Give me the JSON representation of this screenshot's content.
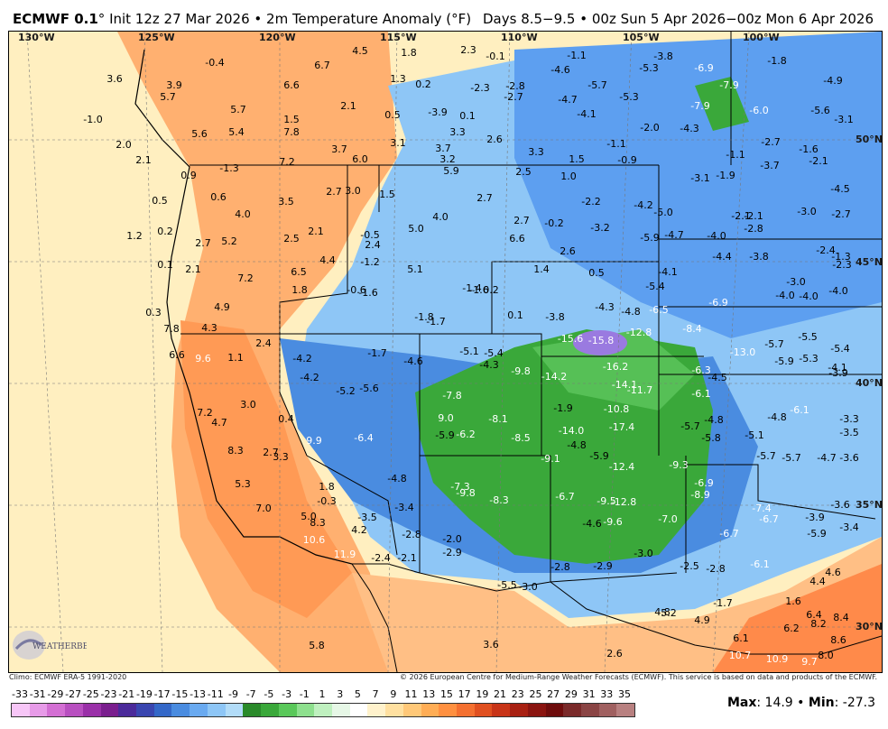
{
  "header": {
    "model": "ECMWF 0.1",
    "degree": "°",
    "init_text": "Init 12z 27 Mar 2026 • 2m Temperature Anomaly (°F)",
    "valid_text": "Days 8.5−9.5 • 00z Sun 5 Apr 2026−00z Mon 6 Apr 2026"
  },
  "footer": {
    "climo": "Climo: ECMWF ERA-5 1991-2020",
    "copyright": "© 2026 European Centre for Medium-Range Weather Forecasts (ECMWF). This service is based on data and products of the ECMWF."
  },
  "stats": {
    "max_label": "Max",
    "max_value": "14.9",
    "sep": " • ",
    "min_label": "Min",
    "min_value": "-27.3"
  },
  "logo_text": "WEATHERBELL",
  "longitude_labels": [
    "130°W",
    "125°W",
    "120°W",
    "115°W",
    "110°W",
    "105°W",
    "100°W"
  ],
  "latitude_labels": [
    "50°N",
    "45°N",
    "40°N",
    "35°N",
    "30°N"
  ],
  "colorbar": {
    "ticks": [
      "-33",
      "-31",
      "-29",
      "-27",
      "-25",
      "-23",
      "-21",
      "-19",
      "-17",
      "-15",
      "-13",
      "-11",
      "-9",
      "-7",
      "-5",
      "-3",
      "-1",
      "1",
      "3",
      "5",
      "7",
      "9",
      "11",
      "13",
      "15",
      "17",
      "19",
      "21",
      "23",
      "25",
      "27",
      "29",
      "31",
      "33",
      "35"
    ],
    "colors": [
      "#f7c6f7",
      "#e79be8",
      "#d36fd3",
      "#b84fc0",
      "#9a30a8",
      "#7a1e8e",
      "#4b2a9a",
      "#3a46b0",
      "#3468c8",
      "#4a8ce0",
      "#6aaaf0",
      "#8ec6f6",
      "#b2dcf8",
      "#2a8a2a",
      "#3aa83a",
      "#5ac85a",
      "#8ee08e",
      "#bff0bf",
      "#e6f7e6",
      "#ffffff",
      "#fff2cc",
      "#ffe0a0",
      "#ffc878",
      "#ffad55",
      "#ff9040",
      "#f47030",
      "#e05020",
      "#c83418",
      "#a82012",
      "#8a1410",
      "#6e0c0c",
      "#7a2a2a",
      "#8a4444",
      "#a06060",
      "#b88080"
    ]
  },
  "anomalies": [
    {
      "v": "-0.4"
    },
    {
      "v": "3.6"
    },
    {
      "v": "3.9"
    },
    {
      "v": "5.7"
    },
    {
      "v": "6.7"
    },
    {
      "v": "4.5"
    },
    {
      "v": "1.8"
    },
    {
      "v": "2.3"
    },
    {
      "v": "-0.1"
    },
    {
      "v": "-1.1"
    },
    {
      "v": "-3.8"
    },
    {
      "v": "-1.8"
    },
    {
      "v": "-4.6"
    },
    {
      "v": "-5.3"
    },
    {
      "v": "-6.9"
    },
    {
      "v": "-4.9"
    },
    {
      "v": "6.6"
    },
    {
      "v": "1.3"
    },
    {
      "v": "0.2"
    },
    {
      "v": "-2.3"
    },
    {
      "v": "-2.8"
    },
    {
      "v": "-2.7"
    },
    {
      "v": "-5.7"
    },
    {
      "v": "-4.7"
    },
    {
      "v": "-5.3"
    },
    {
      "v": "-7.9"
    },
    {
      "v": "-7.9"
    },
    {
      "v": "-6.0"
    },
    {
      "v": "-5.6"
    },
    {
      "v": "-3.1"
    },
    {
      "v": "5.7"
    },
    {
      "v": "2.1"
    },
    {
      "v": "0.5"
    },
    {
      "v": "-3.9"
    },
    {
      "v": "0.1"
    },
    {
      "v": "-4.1"
    },
    {
      "v": "1.5"
    },
    {
      "v": "5.6"
    },
    {
      "v": "5.4"
    },
    {
      "v": "7.8"
    },
    {
      "v": "3.3"
    },
    {
      "v": "2.6"
    },
    {
      "v": "-2.0"
    },
    {
      "v": "-4.3"
    },
    {
      "v": "3.7"
    },
    {
      "v": "3.1"
    },
    {
      "v": "3.7"
    },
    {
      "v": "3.3"
    },
    {
      "v": "-1.1"
    },
    {
      "v": "-2.7"
    },
    {
      "v": "-1.6"
    },
    {
      "v": "-1.0"
    },
    {
      "v": "2.0"
    },
    {
      "v": "2.1"
    },
    {
      "v": "7.2"
    },
    {
      "v": "6.0"
    },
    {
      "v": "3.2"
    },
    {
      "v": "1.5"
    },
    {
      "v": "-0.9"
    },
    {
      "v": "-1.1"
    },
    {
      "v": "-3.7"
    },
    {
      "v": "-2.1"
    },
    {
      "v": "-1.3"
    },
    {
      "v": "0.9"
    },
    {
      "v": "5.9"
    },
    {
      "v": "2.5"
    },
    {
      "v": "1.0"
    },
    {
      "v": "-3.1"
    },
    {
      "v": "-1.9"
    },
    {
      "v": "0.5"
    },
    {
      "v": "0.6"
    },
    {
      "v": "3.5"
    },
    {
      "v": "2.7"
    },
    {
      "v": "3.0"
    },
    {
      "v": "1.5"
    },
    {
      "v": "2.7"
    },
    {
      "v": "-2.2"
    },
    {
      "v": "-4.2"
    },
    {
      "v": "-5.0"
    },
    {
      "v": "-2.1"
    },
    {
      "v": "-3.0"
    },
    {
      "v": "-4.5"
    },
    {
      "v": "-2.7"
    },
    {
      "v": "4.0"
    },
    {
      "v": "0.2"
    },
    {
      "v": "1.2"
    },
    {
      "v": "5.2"
    },
    {
      "v": "2.7"
    },
    {
      "v": "2.5"
    },
    {
      "v": "2.1"
    },
    {
      "v": "-0.5"
    },
    {
      "v": "5.0"
    },
    {
      "v": "4.0"
    },
    {
      "v": "2.7"
    },
    {
      "v": "-0.2"
    },
    {
      "v": "-3.2"
    },
    {
      "v": "-2.1"
    },
    {
      "v": "-2.8"
    },
    {
      "v": "-5.9"
    },
    {
      "v": "-4.7"
    },
    {
      "v": "-4.0"
    },
    {
      "v": "2.4"
    },
    {
      "v": "6.6"
    },
    {
      "v": "2.6"
    },
    {
      "v": "-2.4"
    },
    {
      "v": "-1.3"
    },
    {
      "v": "0.1"
    },
    {
      "v": "2.1"
    },
    {
      "v": "6.5"
    },
    {
      "v": "4.4"
    },
    {
      "v": "-1.2"
    },
    {
      "v": "5.1"
    },
    {
      "v": "1.4"
    },
    {
      "v": "0.5"
    },
    {
      "v": "-4.4"
    },
    {
      "v": "-3.8"
    },
    {
      "v": "-2.3"
    },
    {
      "v": "-4.1"
    },
    {
      "v": "7.2"
    },
    {
      "v": "1.8"
    },
    {
      "v": "-0.6"
    },
    {
      "v": "-1.6"
    },
    {
      "v": "-1.4"
    },
    {
      "v": "-1.6"
    },
    {
      "v": "0.2"
    },
    {
      "v": "-5.4"
    },
    {
      "v": "-3.0"
    },
    {
      "v": "-4.0"
    },
    {
      "v": "-4.0"
    },
    {
      "v": "-4.0"
    },
    {
      "v": "0.3"
    },
    {
      "v": "4.9"
    },
    {
      "v": "-1.8"
    },
    {
      "v": "-1.7"
    },
    {
      "v": "0.1"
    },
    {
      "v": "-3.8"
    },
    {
      "v": "-4.3"
    },
    {
      "v": "-4.8"
    },
    {
      "v": "-6.5"
    },
    {
      "v": "-6.9"
    },
    {
      "v": "7.8"
    },
    {
      "v": "4.3"
    },
    {
      "v": "2.4"
    },
    {
      "v": "-15.6"
    },
    {
      "v": "-15.8"
    },
    {
      "v": "-12.8"
    },
    {
      "v": "-8.4"
    },
    {
      "v": "-5.5"
    },
    {
      "v": "6.6"
    },
    {
      "v": "9.6"
    },
    {
      "v": "1.1"
    },
    {
      "v": "-4.2"
    },
    {
      "v": "-1.7"
    },
    {
      "v": "-4.6"
    },
    {
      "v": "-5.1"
    },
    {
      "v": "-5.4"
    },
    {
      "v": "-4.3"
    },
    {
      "v": "-13.0"
    },
    {
      "v": "-5.7"
    },
    {
      "v": "-5.9"
    },
    {
      "v": "-5.3"
    },
    {
      "v": "-5.4"
    },
    {
      "v": "-3.9"
    },
    {
      "v": "-4.2"
    },
    {
      "v": "-5.2"
    },
    {
      "v": "-5.6"
    },
    {
      "v": "-9.8"
    },
    {
      "v": "-14.2"
    },
    {
      "v": "-16.2"
    },
    {
      "v": "-14.1"
    },
    {
      "v": "-11.7"
    },
    {
      "v": "-6.3"
    },
    {
      "v": "-4.5"
    },
    {
      "v": "-4.1"
    },
    {
      "v": "3.0"
    },
    {
      "v": "-7.8"
    },
    {
      "v": "-1.9"
    },
    {
      "v": "-10.8"
    },
    {
      "v": "-6.1"
    },
    {
      "v": "-4.8"
    },
    {
      "v": "-6.1"
    },
    {
      "v": "-3.3"
    },
    {
      "v": "7.2"
    },
    {
      "v": "4.7"
    },
    {
      "v": "0.4"
    },
    {
      "v": "9.0"
    },
    {
      "v": "-8.1"
    },
    {
      "v": "-14.0"
    },
    {
      "v": "-17.4"
    },
    {
      "v": "-5.7"
    },
    {
      "v": "-4.8"
    },
    {
      "v": "-3.5"
    },
    {
      "v": "-6.4"
    },
    {
      "v": "-5.9"
    },
    {
      "v": "-6.2"
    },
    {
      "v": "-8.5"
    },
    {
      "v": "-4.8"
    },
    {
      "v": "-5.9"
    },
    {
      "v": "-5.8"
    },
    {
      "v": "-5.1"
    },
    {
      "v": "8.3"
    },
    {
      "v": "2.7"
    },
    {
      "v": "3.3"
    },
    {
      "v": "9.9"
    },
    {
      "v": "-9.1"
    },
    {
      "v": "-12.4"
    },
    {
      "v": "-9.3"
    },
    {
      "v": "-5.7"
    },
    {
      "v": "-5.7"
    },
    {
      "v": "-4.7"
    },
    {
      "v": "-3.6"
    },
    {
      "v": "5.3"
    },
    {
      "v": "1.8"
    },
    {
      "v": "-4.8"
    },
    {
      "v": "-7.3"
    },
    {
      "v": "-9.8"
    },
    {
      "v": "-6.9"
    },
    {
      "v": "-8.9"
    },
    {
      "v": "-0.3"
    },
    {
      "v": "-3.4"
    },
    {
      "v": "-8.3"
    },
    {
      "v": "-6.7"
    },
    {
      "v": "-9.5"
    },
    {
      "v": "-12.8"
    },
    {
      "v": "-7.4"
    },
    {
      "v": "-3.6"
    },
    {
      "v": "7.0"
    },
    {
      "v": "5.0"
    },
    {
      "v": "-3.5"
    },
    {
      "v": "-7.0"
    },
    {
      "v": "-6.7"
    },
    {
      "v": "-3.9"
    },
    {
      "v": "-3.4"
    },
    {
      "v": "8.3"
    },
    {
      "v": "4.2"
    },
    {
      "v": "-2.8"
    },
    {
      "v": "-4.6"
    },
    {
      "v": "-9.6"
    },
    {
      "v": "-6.7"
    },
    {
      "v": "-5.9"
    },
    {
      "v": "10.6"
    },
    {
      "v": "-2.0"
    },
    {
      "v": "11.9"
    },
    {
      "v": "-2.4"
    },
    {
      "v": "-2.1"
    },
    {
      "v": "-2.9"
    },
    {
      "v": "-3.0"
    },
    {
      "v": "-6.1"
    },
    {
      "v": "-2.8"
    },
    {
      "v": "-2.9"
    },
    {
      "v": "-2.5"
    },
    {
      "v": "-2.8"
    },
    {
      "v": "4.4"
    },
    {
      "v": "4.6"
    },
    {
      "v": "-5.5"
    },
    {
      "v": "-3.0"
    },
    {
      "v": "-1.7"
    },
    {
      "v": "1.6"
    },
    {
      "v": "6.4"
    },
    {
      "v": "8.4"
    },
    {
      "v": "4.8"
    },
    {
      "v": "5.2"
    },
    {
      "v": "4.9"
    },
    {
      "v": "6.2"
    },
    {
      "v": "8.2"
    },
    {
      "v": "8.6"
    },
    {
      "v": "5.8"
    },
    {
      "v": "3.6"
    },
    {
      "v": "2.6"
    },
    {
      "v": "6.1"
    },
    {
      "v": "10.7"
    },
    {
      "v": "10.9"
    },
    {
      "v": "9.7"
    },
    {
      "v": "8.0"
    }
  ]
}
